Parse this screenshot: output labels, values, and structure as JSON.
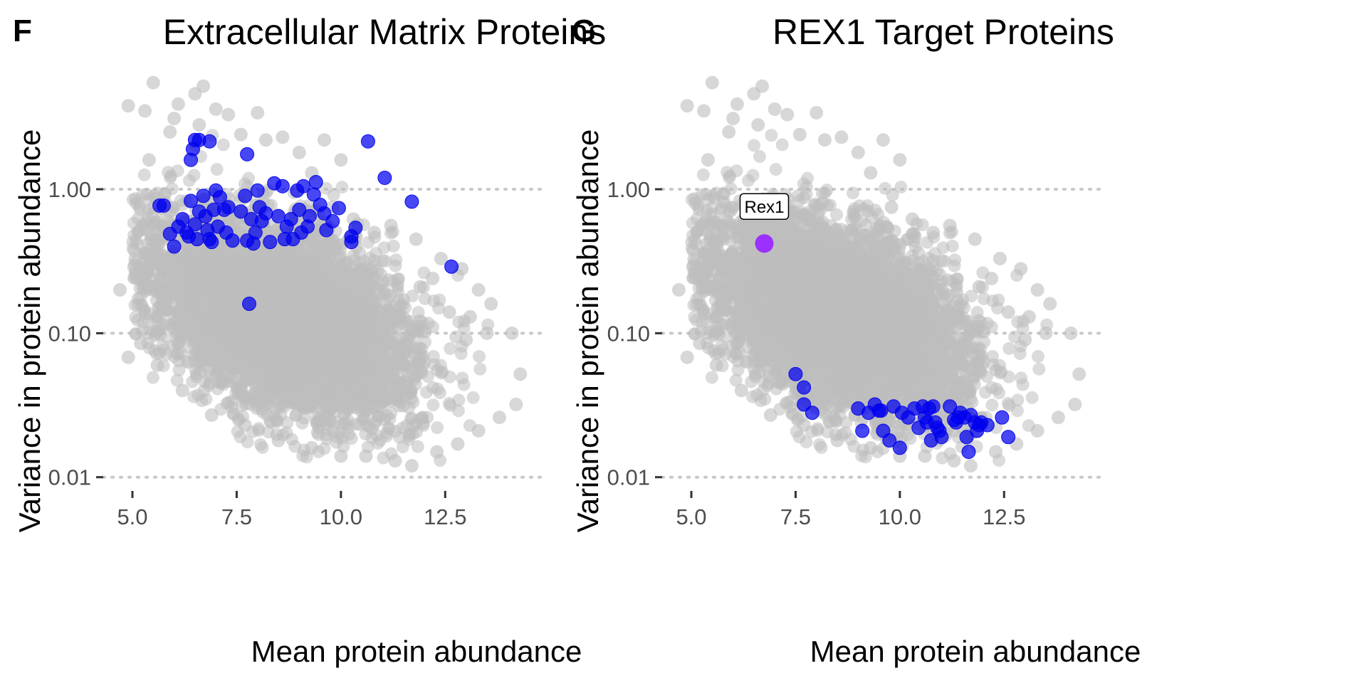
{
  "colors": {
    "background_points": "#bdbdbd",
    "highlight_points": "#0000ee",
    "special_point": "#9b30ff",
    "gridline": "#c8c8c8",
    "tick_label": "#4d4d4d"
  },
  "chart_data": [
    {
      "panel_letter": "F",
      "type": "scatter",
      "title": "Extracellular Matrix Proteins",
      "xlabel": "Mean protein abundance",
      "ylabel": "Variance in protein abundance",
      "xlim": [
        4.3,
        14.8
      ],
      "ylim": [
        0.0085,
        7.0
      ],
      "yscale": "log",
      "xticks": [
        5,
        7.5,
        10,
        12.5
      ],
      "xtick_labels": [
        "5.0",
        "7.5",
        "10.0",
        "12.5"
      ],
      "yticks": [
        0.01,
        0.1,
        1
      ],
      "ytick_labels": [
        "0.01",
        "0.10",
        "1.00"
      ],
      "grid": "horizontal dotted at y ticks",
      "legend": "none",
      "background_series": {
        "name": "",
        "color": "#bdbdbd",
        "cloud": {
          "approx_points": 6000,
          "x_range": [
            4.8,
            14.5
          ],
          "y_range": [
            0.012,
            5.5
          ]
        },
        "points": [
          [
            4.9,
            3.8
          ],
          [
            5.5,
            5.5
          ],
          [
            5.3,
            3.5
          ],
          [
            6.0,
            3.1
          ],
          [
            6.1,
            3.9
          ],
          [
            6.5,
            4.6
          ],
          [
            6.7,
            5.2
          ],
          [
            6.6,
            2.8
          ],
          [
            7.0,
            3.6
          ],
          [
            7.3,
            3.3
          ],
          [
            7.6,
            2.4
          ],
          [
            8.0,
            3.4
          ],
          [
            8.2,
            2.2
          ],
          [
            8.6,
            2.3
          ],
          [
            9.0,
            1.8
          ],
          [
            9.6,
            2.2
          ],
          [
            10.0,
            1.6
          ],
          [
            9.3,
            1.3
          ],
          [
            5.9,
            2.5
          ],
          [
            5.4,
            1.6
          ],
          [
            5.1,
            0.8
          ],
          [
            4.7,
            0.2
          ],
          [
            4.9,
            0.068
          ],
          [
            5.2,
            0.085
          ],
          [
            5.6,
            0.06
          ],
          [
            6.2,
            0.04
          ],
          [
            6.9,
            0.027
          ],
          [
            7.7,
            0.023
          ],
          [
            8.5,
            0.018
          ],
          [
            9.3,
            0.016
          ],
          [
            10.0,
            0.014
          ],
          [
            10.6,
            0.014
          ],
          [
            11.3,
            0.013
          ],
          [
            11.7,
            0.012
          ],
          [
            12.3,
            0.015
          ],
          [
            12.8,
            0.017
          ],
          [
            13.3,
            0.021
          ],
          [
            13.8,
            0.026
          ],
          [
            14.2,
            0.032
          ],
          [
            14.3,
            0.052
          ],
          [
            14.1,
            0.1
          ],
          [
            13.6,
            0.16
          ],
          [
            13.3,
            0.2
          ],
          [
            12.9,
            0.28
          ],
          [
            12.4,
            0.33
          ],
          [
            11.8,
            0.45
          ],
          [
            11.2,
            0.56
          ],
          [
            10.8,
            0.5
          ],
          [
            10.3,
            0.62
          ],
          [
            9.8,
            0.75
          ],
          [
            13.1,
            0.13
          ],
          [
            12.6,
            0.14
          ],
          [
            11.9,
            0.21
          ],
          [
            12.2,
            0.24
          ],
          [
            13.0,
            0.09
          ],
          [
            13.5,
            0.1
          ]
        ]
      },
      "highlight_series": {
        "name": "",
        "color": "#0000ee",
        "points": [
          [
            5.65,
            0.77
          ],
          [
            5.75,
            0.77
          ],
          [
            6.5,
            2.2
          ],
          [
            6.6,
            2.2
          ],
          [
            6.85,
            2.15
          ],
          [
            6.45,
            1.9
          ],
          [
            6.4,
            1.6
          ],
          [
            7.75,
            1.75
          ],
          [
            10.65,
            2.15
          ],
          [
            11.05,
            1.2
          ],
          [
            11.7,
            0.82
          ],
          [
            12.65,
            0.29
          ],
          [
            7.8,
            0.16
          ],
          [
            5.9,
            0.49
          ],
          [
            6.0,
            0.4
          ],
          [
            6.1,
            0.55
          ],
          [
            6.2,
            0.62
          ],
          [
            6.3,
            0.5
          ],
          [
            6.35,
            0.47
          ],
          [
            6.4,
            0.83
          ],
          [
            6.5,
            0.57
          ],
          [
            6.55,
            0.45
          ],
          [
            6.6,
            0.7
          ],
          [
            6.7,
            0.9
          ],
          [
            6.75,
            0.65
          ],
          [
            6.8,
            0.52
          ],
          [
            6.85,
            0.45
          ],
          [
            6.9,
            0.43
          ],
          [
            6.95,
            0.72
          ],
          [
            7.0,
            0.98
          ],
          [
            7.05,
            0.55
          ],
          [
            7.1,
            0.88
          ],
          [
            7.2,
            0.72
          ],
          [
            7.25,
            0.5
          ],
          [
            7.3,
            0.75
          ],
          [
            7.4,
            0.44
          ],
          [
            7.6,
            0.7
          ],
          [
            7.7,
            0.9
          ],
          [
            7.75,
            0.44
          ],
          [
            7.85,
            0.62
          ],
          [
            7.9,
            0.42
          ],
          [
            7.95,
            0.5
          ],
          [
            8.0,
            0.98
          ],
          [
            8.05,
            0.75
          ],
          [
            8.1,
            0.6
          ],
          [
            8.2,
            0.68
          ],
          [
            8.3,
            0.43
          ],
          [
            8.4,
            1.1
          ],
          [
            8.5,
            0.65
          ],
          [
            8.6,
            1.05
          ],
          [
            8.65,
            0.45
          ],
          [
            8.7,
            0.55
          ],
          [
            8.8,
            0.62
          ],
          [
            8.85,
            0.45
          ],
          [
            8.95,
            0.98
          ],
          [
            9.0,
            0.72
          ],
          [
            9.05,
            0.5
          ],
          [
            9.1,
            1.05
          ],
          [
            9.2,
            0.55
          ],
          [
            9.25,
            0.65
          ],
          [
            9.35,
            0.92
          ],
          [
            9.4,
            1.12
          ],
          [
            9.5,
            0.78
          ],
          [
            9.6,
            0.68
          ],
          [
            9.65,
            0.52
          ],
          [
            9.8,
            0.6
          ],
          [
            9.95,
            0.74
          ],
          [
            10.25,
            0.47
          ],
          [
            10.25,
            0.43
          ],
          [
            10.35,
            0.54
          ]
        ]
      }
    },
    {
      "panel_letter": "G",
      "type": "scatter",
      "title": "REX1 Target Proteins",
      "xlabel": "Mean protein abundance",
      "ylabel": "Variance in protein abundance",
      "xlim": [
        4.3,
        14.8
      ],
      "ylim": [
        0.0085,
        7.0
      ],
      "yscale": "log",
      "xticks": [
        5,
        7.5,
        10,
        12.5
      ],
      "xtick_labels": [
        "5.0",
        "7.5",
        "10.0",
        "12.5"
      ],
      "yticks": [
        0.01,
        0.1,
        1
      ],
      "ytick_labels": [
        "0.01",
        "0.10",
        "1.00"
      ],
      "grid": "horizontal dotted at y ticks",
      "legend": "none",
      "background_series": {
        "name": "",
        "color": "#bdbdbd",
        "cloud": {
          "approx_points": 6000,
          "x_range": [
            4.8,
            14.5
          ],
          "y_range": [
            0.012,
            5.5
          ]
        },
        "points": [
          [
            4.9,
            3.8
          ],
          [
            5.5,
            5.5
          ],
          [
            5.3,
            3.5
          ],
          [
            6.0,
            3.1
          ],
          [
            6.1,
            3.9
          ],
          [
            6.5,
            4.6
          ],
          [
            6.7,
            5.2
          ],
          [
            6.6,
            2.8
          ],
          [
            7.0,
            3.6
          ],
          [
            7.3,
            3.3
          ],
          [
            7.6,
            2.4
          ],
          [
            8.0,
            3.4
          ],
          [
            8.2,
            2.2
          ],
          [
            8.6,
            2.3
          ],
          [
            9.0,
            1.8
          ],
          [
            9.6,
            2.2
          ],
          [
            10.0,
            1.6
          ],
          [
            9.3,
            1.3
          ],
          [
            5.9,
            2.5
          ],
          [
            5.4,
            1.6
          ],
          [
            5.1,
            0.8
          ],
          [
            4.7,
            0.2
          ],
          [
            4.9,
            0.068
          ],
          [
            5.2,
            0.085
          ],
          [
            5.6,
            0.06
          ],
          [
            6.2,
            0.04
          ],
          [
            6.9,
            0.027
          ],
          [
            7.7,
            0.023
          ],
          [
            8.5,
            0.018
          ],
          [
            9.3,
            0.016
          ],
          [
            10.0,
            0.014
          ],
          [
            10.6,
            0.014
          ],
          [
            11.3,
            0.013
          ],
          [
            11.7,
            0.012
          ],
          [
            12.3,
            0.015
          ],
          [
            12.8,
            0.017
          ],
          [
            13.3,
            0.021
          ],
          [
            13.8,
            0.026
          ],
          [
            14.2,
            0.032
          ],
          [
            14.3,
            0.052
          ],
          [
            14.1,
            0.1
          ],
          [
            13.6,
            0.16
          ],
          [
            13.3,
            0.2
          ],
          [
            12.9,
            0.28
          ],
          [
            12.4,
            0.33
          ],
          [
            11.8,
            0.45
          ],
          [
            11.2,
            0.56
          ],
          [
            10.8,
            0.5
          ],
          [
            10.3,
            0.62
          ],
          [
            9.8,
            0.75
          ],
          [
            13.1,
            0.13
          ],
          [
            12.6,
            0.14
          ],
          [
            11.9,
            0.21
          ],
          [
            12.2,
            0.24
          ],
          [
            13.0,
            0.09
          ],
          [
            13.5,
            0.1
          ]
        ]
      },
      "highlight_series": {
        "name": "",
        "color": "#0000ee",
        "points": [
          [
            7.5,
            0.052
          ],
          [
            7.7,
            0.042
          ],
          [
            7.7,
            0.032
          ],
          [
            7.9,
            0.028
          ],
          [
            9.0,
            0.03
          ],
          [
            9.1,
            0.021
          ],
          [
            9.25,
            0.028
          ],
          [
            9.4,
            0.032
          ],
          [
            9.5,
            0.029
          ],
          [
            9.55,
            0.029
          ],
          [
            9.6,
            0.021
          ],
          [
            9.75,
            0.018
          ],
          [
            9.85,
            0.031
          ],
          [
            10.0,
            0.016
          ],
          [
            10.05,
            0.028
          ],
          [
            10.2,
            0.026
          ],
          [
            10.35,
            0.03
          ],
          [
            10.45,
            0.022
          ],
          [
            10.55,
            0.031
          ],
          [
            10.6,
            0.026
          ],
          [
            10.65,
            0.024
          ],
          [
            10.7,
            0.03
          ],
          [
            10.75,
            0.018
          ],
          [
            10.8,
            0.031
          ],
          [
            10.85,
            0.024
          ],
          [
            10.9,
            0.022
          ],
          [
            10.95,
            0.021
          ],
          [
            11.0,
            0.019
          ],
          [
            11.2,
            0.031
          ],
          [
            11.3,
            0.025
          ],
          [
            11.35,
            0.024
          ],
          [
            11.4,
            0.026
          ],
          [
            11.45,
            0.028
          ],
          [
            11.55,
            0.026
          ],
          [
            11.6,
            0.019
          ],
          [
            11.65,
            0.015
          ],
          [
            11.7,
            0.027
          ],
          [
            11.8,
            0.024
          ],
          [
            11.85,
            0.021
          ],
          [
            11.9,
            0.023
          ],
          [
            11.95,
            0.024
          ],
          [
            12.1,
            0.023
          ],
          [
            12.45,
            0.026
          ],
          [
            12.6,
            0.019
          ]
        ]
      },
      "special_point": {
        "label": "Rex1",
        "x": 6.75,
        "y": 0.42,
        "color": "#9b30ff"
      }
    }
  ]
}
